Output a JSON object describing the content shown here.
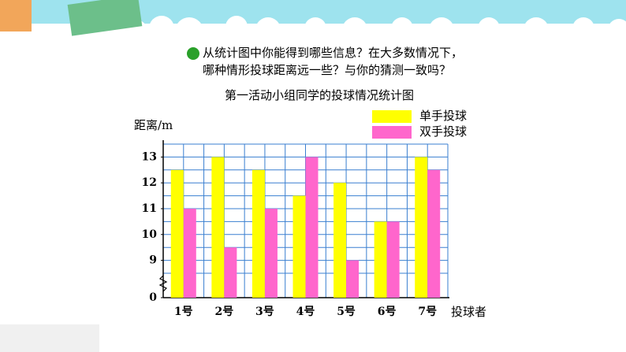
{
  "question": [
    "从统计图中你能得到哪些信息？在大多数情况下，",
    "哪种情形投球距离远一些？与你的猜测一致吗？"
  ],
  "chart_data": {
    "type": "bar",
    "title": "第一活动小组同学的投球情况统计图",
    "y_label": "距离/m",
    "x_label": "投球者",
    "categories": [
      "1号",
      "2号",
      "3号",
      "4号",
      "5号",
      "6号",
      "7号"
    ],
    "series": [
      {
        "name": "单手投球",
        "color": "#ffff00",
        "values": [
          12.5,
          13,
          12.5,
          11.5,
          12,
          10.5,
          13
        ]
      },
      {
        "name": "双手投球",
        "color": "#ff66cc",
        "values": [
          11,
          9.5,
          11,
          13,
          9,
          10.5,
          12.5
        ]
      }
    ],
    "ylim": [
      0,
      13.5
    ],
    "y_break": [
      0,
      8.5
    ],
    "yticks": [
      0,
      9,
      10,
      11,
      12,
      13
    ],
    "grid": true
  }
}
